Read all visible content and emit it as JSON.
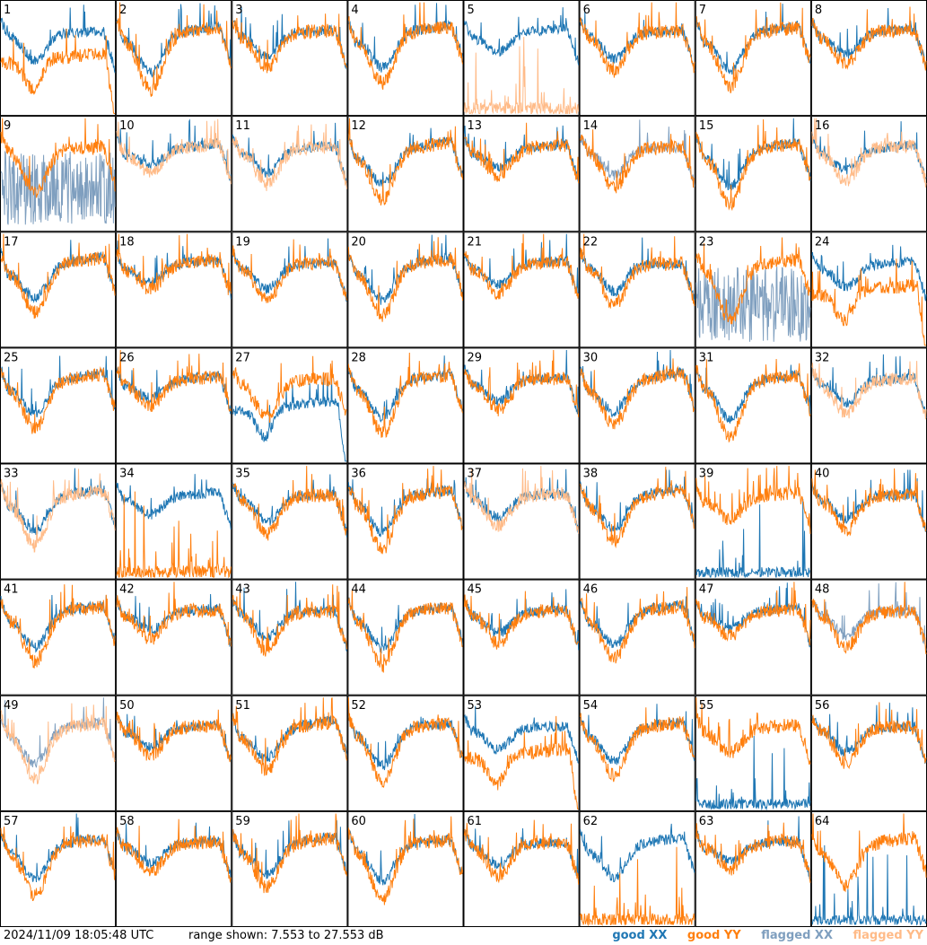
{
  "chart_data": {
    "type": "line",
    "layout": "small-multiples 8x8",
    "panel_labels": [
      "1",
      "2",
      "3",
      "4",
      "5",
      "6",
      "7",
      "8",
      "9",
      "10",
      "11",
      "12",
      "13",
      "14",
      "15",
      "16",
      "17",
      "18",
      "19",
      "20",
      "21",
      "22",
      "23",
      "24",
      "25",
      "26",
      "27",
      "28",
      "29",
      "30",
      "31",
      "32",
      "33",
      "34",
      "35",
      "36",
      "37",
      "38",
      "39",
      "40",
      "41",
      "42",
      "43",
      "44",
      "45",
      "46",
      "47",
      "48",
      "49",
      "50",
      "51",
      "52",
      "53",
      "54",
      "55",
      "56",
      "57",
      "58",
      "59",
      "60",
      "61",
      "62",
      "63",
      "64"
    ],
    "ylim": [
      7.553,
      27.553
    ],
    "series_legend": [
      {
        "name": "good XX",
        "color": "#1f77b4"
      },
      {
        "name": "good YY",
        "color": "#ff7f0e"
      },
      {
        "name": "flagged XX",
        "color": "#7f9fbf"
      },
      {
        "name": "flagged YY",
        "color": "#ffbb88"
      }
    ],
    "flagged_xx_panels": [
      9,
      14,
      23,
      48,
      49
    ],
    "flagged_yy_panels": [
      5,
      10,
      11,
      16,
      32,
      33,
      37,
      49
    ],
    "anomalous_xx_panels": [
      27,
      39,
      55,
      64
    ],
    "anomalous_yy_panels": [
      1,
      5,
      24,
      34,
      53,
      62
    ]
  },
  "footer": {
    "timestamp": "2024/11/09 18:05:48 UTC",
    "range_text": "range shown: 7.553 to 27.553 dB",
    "legend": {
      "good_xx": "good XX",
      "good_yy": "good YY",
      "flagged_xx": "flagged XX",
      "flagged_yy": "flagged YY"
    }
  },
  "colors": {
    "good_xx": "#1f77b4",
    "good_yy": "#ff7f0e",
    "flagged_xx": "#7f9fbf",
    "flagged_yy": "#ffbb88"
  }
}
